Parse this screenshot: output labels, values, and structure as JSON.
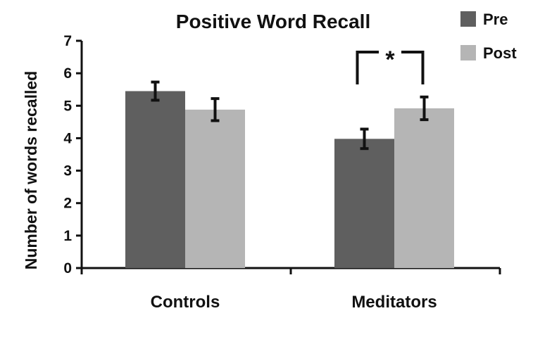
{
  "chart_data": {
    "type": "bar",
    "title": "Positive Word Recall",
    "xlabel": "",
    "ylabel": "Number of words recalled",
    "ylim": [
      0,
      7
    ],
    "yticks": [
      0,
      1,
      2,
      3,
      4,
      5,
      6,
      7
    ],
    "categories": [
      "Controls",
      "Meditators"
    ],
    "series": [
      {
        "name": "Pre",
        "color": "#5f5f5f",
        "values": [
          5.45,
          3.98
        ],
        "errors": [
          0.28,
          0.3
        ]
      },
      {
        "name": "Post",
        "color": "#b5b5b5",
        "values": [
          4.88,
          4.92
        ],
        "errors": [
          0.34,
          0.35
        ]
      }
    ],
    "legend": "top-right",
    "grid": false,
    "annotations": [
      {
        "text": "*",
        "between": [
          "Meditators.Pre",
          "Meditators.Post"
        ],
        "meaning": "significant difference"
      }
    ]
  }
}
